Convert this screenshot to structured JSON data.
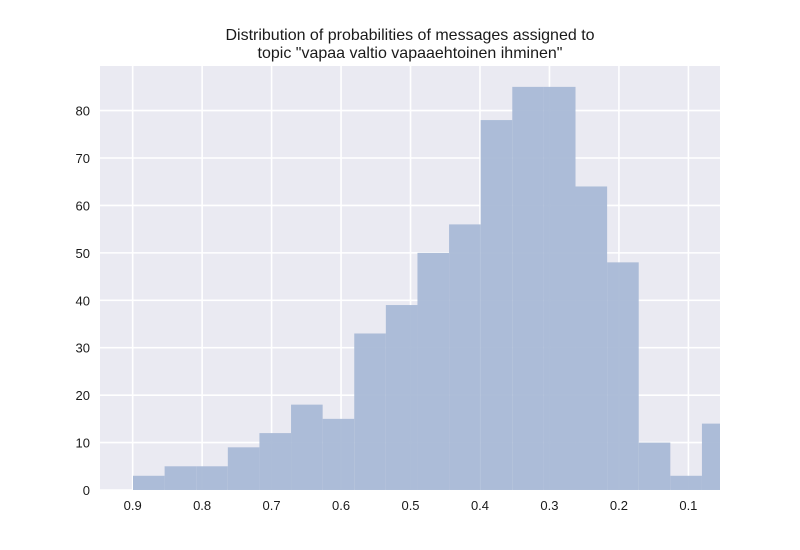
{
  "chart_data": {
    "type": "bar",
    "title_lines": [
      "Distribution of probabilities of messages assigned to",
      "topic \"vapaa valtio vapaaehtoinen ihminen\""
    ],
    "xlabel": "",
    "ylabel": "",
    "x_reversed": true,
    "xlim": [
      0.947,
      0.0545
    ],
    "ylim": [
      0,
      89.4
    ],
    "grid": true,
    "x_ticks": [
      0.9,
      0.8,
      0.7,
      0.6,
      0.5,
      0.4,
      0.3,
      0.2,
      0.1
    ],
    "x_tick_labels": [
      "0.9",
      "0.8",
      "0.7",
      "0.6",
      "0.5",
      "0.4",
      "0.3",
      "0.2",
      "0.1"
    ],
    "y_ticks": [
      0,
      10,
      20,
      30,
      40,
      50,
      60,
      70,
      80
    ],
    "y_tick_labels": [
      "0",
      "10",
      "20",
      "30",
      "40",
      "50",
      "60",
      "70",
      "80"
    ],
    "bin_edges": [
      0.8995,
      0.854,
      0.8085,
      0.763,
      0.7175,
      0.672,
      0.6265,
      0.581,
      0.5355,
      0.49,
      0.4445,
      0.399,
      0.3535,
      0.308,
      0.2625,
      0.217,
      0.1715,
      0.126,
      0.0805,
      0.0545
    ],
    "values": [
      3,
      5,
      5,
      9,
      12,
      18,
      15,
      33,
      39,
      50,
      56,
      78,
      85,
      85,
      64,
      48,
      10,
      3,
      14
    ],
    "colors": {
      "bar": "#a9b9d6",
      "background": "#eaeaf2",
      "grid": "#ffffff",
      "text": "#1a1a1a"
    }
  }
}
